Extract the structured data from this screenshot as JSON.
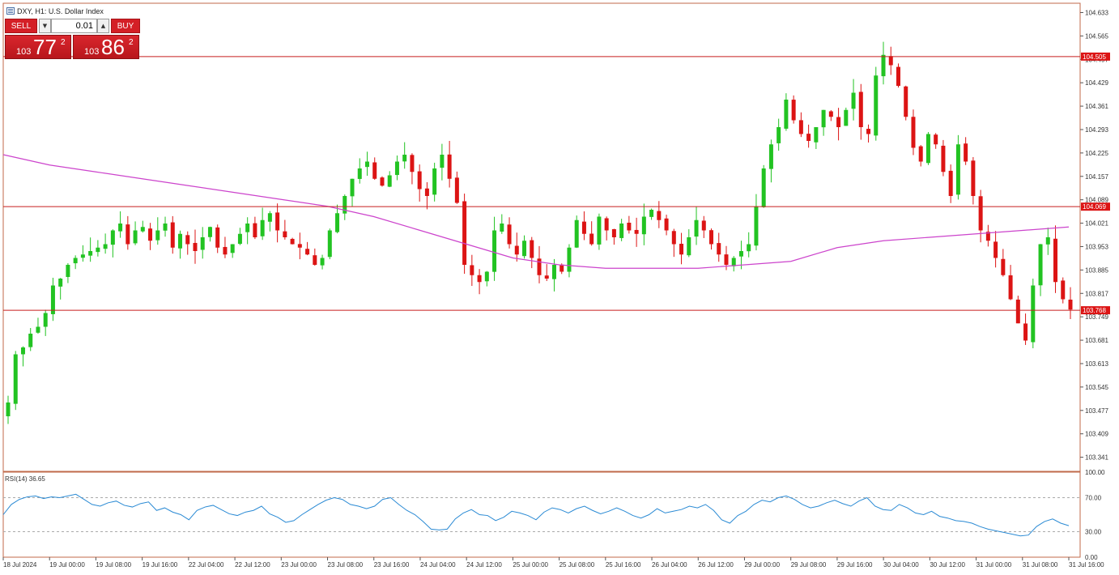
{
  "window": {
    "title": "DXY, H1:  U.S. Dollar Index"
  },
  "trade_panel": {
    "sell_label": "SELL",
    "buy_label": "BUY",
    "lot_value": "0.01",
    "sell_price": {
      "prefix": "103",
      "big": "77",
      "sup": "2"
    },
    "buy_price": {
      "prefix": "103",
      "big": "86",
      "sup": "2"
    }
  },
  "colors": {
    "bull": "#22c322",
    "bear": "#dc1414",
    "ma": "#cc44cc",
    "rsi": "#2a8ad4",
    "hline": "#c81e1e",
    "price_tag_bg": "#dc1414",
    "frame": "#c06a4a"
  },
  "chart_data": [
    {
      "type": "candlestick",
      "symbol": "DXY",
      "timeframe": "H1",
      "ylim": [
        103.3,
        104.66
      ],
      "y_ticks": [
        "104.633",
        "104.565",
        "104.497",
        "104.429",
        "104.361",
        "104.293",
        "104.225",
        "104.157",
        "104.089",
        "104.021",
        "103.953",
        "103.885",
        "103.817",
        "103.749",
        "103.681",
        "103.613",
        "103.545",
        "103.477",
        "103.409",
        "103.341"
      ],
      "x_labels": [
        "18 Jul 2024",
        "19 Jul 00:00",
        "19 Jul 08:00",
        "19 Jul 16:00",
        "22 Jul 04:00",
        "22 Jul 12:00",
        "23 Jul 00:00",
        "23 Jul 08:00",
        "23 Jul 16:00",
        "24 Jul 04:00",
        "24 Jul 12:00",
        "25 Jul 00:00",
        "25 Jul 08:00",
        "25 Jul 16:00",
        "26 Jul 04:00",
        "26 Jul 12:00",
        "29 Jul 00:00",
        "29 Jul 08:00",
        "29 Jul 16:00",
        "30 Jul 04:00",
        "30 Jul 12:00",
        "31 Jul 00:00",
        "31 Jul 08:00",
        "31 Jul 16:00"
      ],
      "horizontal_levels": [
        104.505,
        104.069,
        103.768
      ],
      "level_labels": [
        "104.505",
        "104.069",
        "103.768"
      ],
      "ohlc_close_path": [
        103.5,
        103.64,
        103.66,
        103.7,
        103.72,
        103.76,
        103.84,
        103.86,
        103.9,
        103.92,
        103.93,
        103.94,
        103.95,
        103.96,
        104.0,
        104.02,
        103.96,
        104.0,
        104.01,
        103.97,
        104.0,
        104.02,
        103.95,
        103.99,
        103.96,
        103.94,
        103.98,
        104.01,
        103.95,
        103.93,
        103.96,
        103.99,
        104.02,
        103.98,
        104.03,
        104.05,
        104.0,
        103.98,
        103.96,
        103.95,
        103.93,
        103.9,
        103.92,
        104.0,
        104.05,
        104.1,
        104.15,
        104.18,
        104.2,
        104.15,
        104.13,
        104.16,
        104.2,
        104.22,
        104.17,
        104.12,
        104.1,
        104.18,
        104.22,
        104.15,
        104.08,
        103.9,
        103.87,
        103.85,
        103.88,
        104.0,
        104.02,
        103.96,
        103.93,
        103.97,
        103.92,
        103.87,
        103.86,
        103.9,
        103.88,
        103.95,
        104.03,
        103.99,
        103.96,
        104.04,
        104.0,
        103.98,
        104.02,
        104.0,
        103.99,
        104.04,
        104.06,
        104.03,
        104.0,
        103.96,
        103.93,
        103.98,
        104.03,
        104.0,
        103.96,
        103.93,
        103.9,
        103.92,
        103.94,
        103.96,
        104.07,
        104.18,
        104.25,
        104.3,
        104.38,
        104.32,
        104.28,
        104.26,
        104.3,
        104.35,
        104.33,
        104.3,
        104.35,
        104.4,
        104.3,
        104.28,
        104.45,
        104.51,
        104.48,
        104.42,
        104.33,
        104.24,
        104.2,
        104.28,
        104.25,
        104.17,
        104.1,
        104.25,
        104.2,
        104.1,
        104.0,
        103.97,
        103.92,
        103.87,
        103.8,
        103.73,
        103.68,
        103.84,
        103.96,
        103.98,
        103.85,
        103.8,
        103.77
      ],
      "ma_path": [
        104.22,
        104.19,
        104.17,
        104.15,
        104.13,
        104.11,
        104.09,
        104.07,
        104.04,
        104.0,
        103.96,
        103.92,
        103.9,
        103.89,
        103.89,
        103.89,
        103.9,
        103.91,
        103.95,
        103.97,
        103.98,
        103.99,
        104.0,
        104.01
      ],
      "rsi": {
        "label": "RSI(14) 36.65",
        "period": 14,
        "value": 36.65,
        "ylim": [
          0,
          100
        ],
        "y_ticks": [
          "100.00",
          "70.00",
          "30.00",
          "0.00"
        ],
        "levels": [
          70,
          30
        ],
        "values": [
          50,
          62,
          68,
          71,
          72,
          69,
          71,
          70,
          72,
          74,
          68,
          62,
          60,
          64,
          66,
          61,
          59,
          63,
          65,
          55,
          58,
          53,
          50,
          44,
          55,
          59,
          61,
          56,
          51,
          49,
          53,
          55,
          60,
          51,
          47,
          41,
          43,
          50,
          56,
          62,
          67,
          70,
          68,
          62,
          60,
          57,
          60,
          68,
          70,
          62,
          55,
          50,
          42,
          33,
          32,
          33,
          45,
          52,
          56,
          50,
          49,
          43,
          47,
          54,
          52,
          49,
          44,
          53,
          58,
          56,
          52,
          57,
          60,
          55,
          51,
          54,
          58,
          54,
          49,
          46,
          50,
          57,
          52,
          54,
          56,
          60,
          58,
          62,
          55,
          44,
          40,
          49,
          54,
          62,
          67,
          65,
          70,
          72,
          68,
          62,
          58,
          60,
          64,
          67,
          63,
          60,
          66,
          70,
          60,
          56,
          55,
          62,
          58,
          52,
          50,
          54,
          48,
          46,
          43,
          42,
          40,
          36,
          33,
          31,
          29,
          27,
          25,
          26,
          36,
          42,
          45,
          40,
          37
        ]
      }
    }
  ]
}
